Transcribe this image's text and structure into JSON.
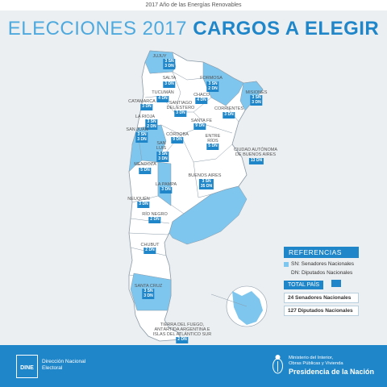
{
  "header": {
    "subtitle": "2017 Año de las Energías Renovables",
    "title_light": "ELECCIONES 2017",
    "title_bold": "CARGOS A ELEGIR"
  },
  "provinces": [
    {
      "name": "JUJUY",
      "badge": "3 SN\n3 DN"
    },
    {
      "name": "SALTA",
      "badge": "3 DN"
    },
    {
      "name": "FORMOSA",
      "badge": "3 SN\n2 DN"
    },
    {
      "name": "MISIONES",
      "badge": "3 SN\n3 DN"
    },
    {
      "name": "TUCUMÁN",
      "badge": "4 DN"
    },
    {
      "name": "CHACO",
      "badge": "4 DN"
    },
    {
      "name": "CATAMARCA",
      "badge": "3 DN"
    },
    {
      "name": "SANTIAGO\nDEL ESTERO",
      "badge": "3 DN"
    },
    {
      "name": "CORRIENTES",
      "badge": "3 DN"
    },
    {
      "name": "LA RIOJA",
      "badge": "3 SN\n2 DN"
    },
    {
      "name": "SANTA FE",
      "badge": "9 DN"
    },
    {
      "name": "SAN JUAN",
      "badge": "3 SN\n3 DN"
    },
    {
      "name": "CÓRDOBA",
      "badge": "9 DN"
    },
    {
      "name": "ENTRE\nRÍOS",
      "badge": "5 DN"
    },
    {
      "name": "CIUDAD AUTÓNOMA\nDE BUENOS AIRES",
      "badge": "13 DN"
    },
    {
      "name": "SAN\nLUIS",
      "badge": "3 SN\n3 DN"
    },
    {
      "name": "MENDOZA",
      "badge": "5 DN"
    },
    {
      "name": "BUENOS AIRES",
      "badge": "3 SN\n35 DN"
    },
    {
      "name": "LA PAMPA",
      "badge": "3 DN"
    },
    {
      "name": "NEUQUÉN",
      "badge": "3 DN"
    },
    {
      "name": "RÍO NEGRO",
      "badge": "2 DN"
    },
    {
      "name": "CHUBUT",
      "badge": "2 DN"
    },
    {
      "name": "SANTA CRUZ",
      "badge": "3 SN\n3 DN"
    },
    {
      "name": "TIERRA DEL FUEGO,\nANTÁRTIDA ARGENTINA E\nISLAS DEL ATLÁNTICO SUR",
      "badge": "2 DN"
    }
  ],
  "legend": {
    "title": "REFERENCIAS",
    "sn": "SN: Senadores Nacionales",
    "dn": "DN: Diputados Nacionales",
    "total_title": "TOTAL PAÍS",
    "total_sn": "24 Senadores Nacionales",
    "total_dn": "127 Diputados Nacionales"
  },
  "footer": {
    "logo_text": "DINE",
    "dine_line1": "Dirección Nacional",
    "dine_line2": "Electoral",
    "ministry_line1": "Ministerio del Interior,",
    "ministry_line2": "Obras Públicas y Vivienda",
    "presidencia": "Presidencia de la Nación"
  },
  "colors": {
    "accent": "#1f86c9",
    "highlight": "#7ec6ee",
    "land": "#ffffff",
    "background": "#eceff1"
  }
}
